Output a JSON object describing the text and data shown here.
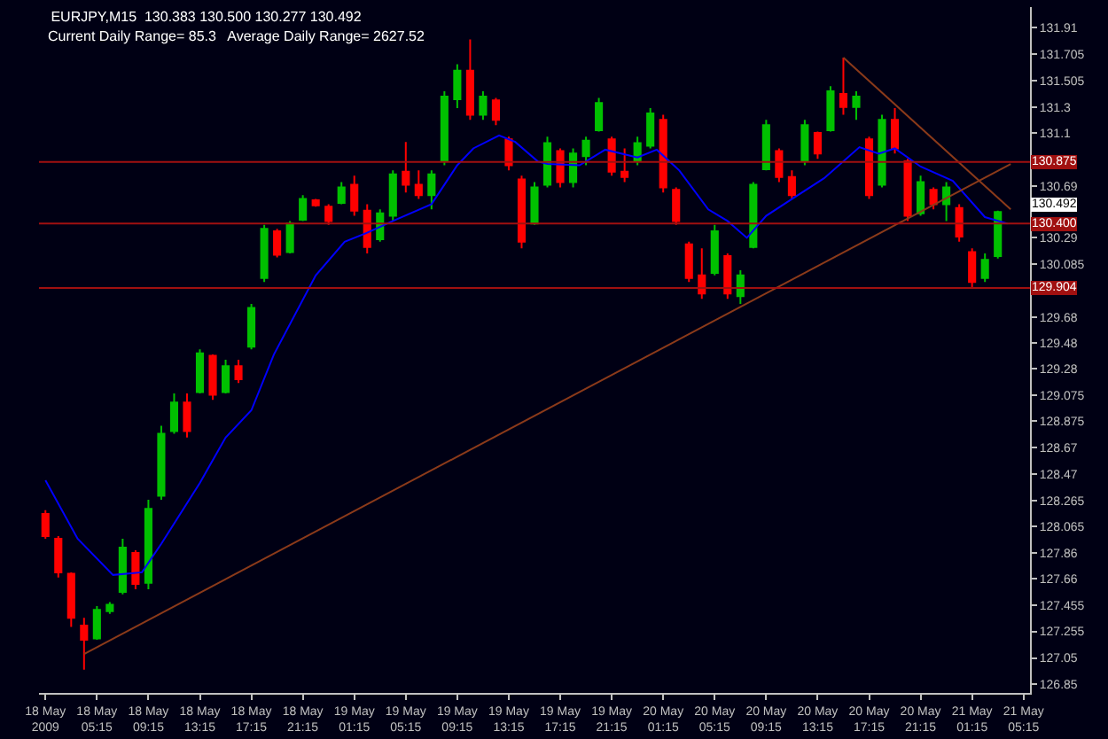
{
  "chart_data": {
    "type": "candlestick",
    "title": "EURJPY,M15  130.383 130.500 130.277 130.492",
    "subtitle": "Current Daily Range= 85.3   Average Daily Range= 2627.52",
    "x": [
      "2009-05-18T01:15",
      "2009-05-18T02:15",
      "2009-05-18T03:15",
      "2009-05-18T04:15",
      "2009-05-18T05:15",
      "2009-05-18T06:15",
      "2009-05-18T07:15",
      "2009-05-18T08:15",
      "2009-05-18T09:15",
      "2009-05-18T10:15",
      "2009-05-18T11:15",
      "2009-05-18T12:15",
      "2009-05-18T13:15",
      "2009-05-18T14:15",
      "2009-05-18T15:15",
      "2009-05-18T16:15",
      "2009-05-18T17:15",
      "2009-05-18T18:15",
      "2009-05-18T19:15",
      "2009-05-18T20:15",
      "2009-05-18T21:15",
      "2009-05-18T22:15",
      "2009-05-18T23:15",
      "2009-05-19T00:15",
      "2009-05-19T01:15",
      "2009-05-19T02:15",
      "2009-05-19T03:15",
      "2009-05-19T04:15",
      "2009-05-19T05:15",
      "2009-05-19T06:15",
      "2009-05-19T07:15",
      "2009-05-19T08:15",
      "2009-05-19T09:15",
      "2009-05-19T10:15",
      "2009-05-19T11:15",
      "2009-05-19T12:15",
      "2009-05-19T13:15",
      "2009-05-19T14:15",
      "2009-05-19T15:15",
      "2009-05-19T16:15",
      "2009-05-19T17:15",
      "2009-05-19T18:15",
      "2009-05-19T19:15",
      "2009-05-19T20:15",
      "2009-05-19T21:15",
      "2009-05-19T22:15",
      "2009-05-19T23:15",
      "2009-05-20T00:15",
      "2009-05-20T01:15",
      "2009-05-20T02:15",
      "2009-05-20T03:15",
      "2009-05-20T04:15",
      "2009-05-20T05:15",
      "2009-05-20T06:15",
      "2009-05-20T07:15",
      "2009-05-20T08:15",
      "2009-05-20T09:15",
      "2009-05-20T10:15",
      "2009-05-20T11:15",
      "2009-05-20T12:15",
      "2009-05-20T13:15",
      "2009-05-20T14:15",
      "2009-05-20T15:15",
      "2009-05-20T16:15",
      "2009-05-20T17:15",
      "2009-05-20T18:15",
      "2009-05-20T19:15",
      "2009-05-20T20:15",
      "2009-05-20T21:15",
      "2009-05-20T22:15",
      "2009-05-20T23:15",
      "2009-05-21T00:15",
      "2009-05-21T01:15",
      "2009-05-21T02:15",
      "2009-05-21T03:15"
    ],
    "series": [
      {
        "type": "candlestick",
        "colors": [
          "#ff0000",
          "#ff0000",
          "#ff0000",
          "#ff0000",
          "#00c000",
          "#00c000",
          "#00c000",
          "#ff0000",
          "#00c000",
          "#00c000",
          "#00c000",
          "#ff0000",
          "#00c000",
          "#ff0000",
          "#00c000",
          "#ff0000",
          "#00c000",
          "#00c000",
          "#ff0000",
          "#00c000",
          "#00c000",
          "#ff0000",
          "#ff0000",
          "#00c000",
          "#ff0000",
          "#ff0000",
          "#00c000",
          "#00c000",
          "#ff0000",
          "#ff0000",
          "#00c000",
          "#00c000",
          "#00c000",
          "#ff0000",
          "#00c000",
          "#ff0000",
          "#ff0000",
          "#ff0000",
          "#00c000",
          "#00c000",
          "#ff0000",
          "#00c000",
          "#00c000",
          "#00c000",
          "#ff0000",
          "#ff0000",
          "#00c000",
          "#00c000",
          "#ff0000",
          "#ff0000",
          "#ff0000",
          "#ff0000",
          "#00c000",
          "#ff0000",
          "#00c000",
          "#00c000",
          "#00c000",
          "#ff0000",
          "#ff0000",
          "#00c000",
          "#ff0000",
          "#00c000",
          "#ff0000",
          "#00c000",
          "#ff0000",
          "#00c000",
          "#ff0000",
          "#ff0000",
          "#00c000",
          "#ff0000",
          "#00c000",
          "#ff0000",
          "#ff0000",
          "#00c000",
          "#00c000"
        ],
        "ohlc": [
          [
            128.16,
            128.19,
            127.97,
            127.99
          ],
          [
            127.97,
            127.99,
            127.67,
            127.71
          ],
          [
            127.7,
            127.71,
            127.29,
            127.36
          ],
          [
            127.3,
            127.36,
            126.96,
            127.19
          ],
          [
            127.2,
            127.45,
            127.19,
            127.42
          ],
          [
            127.41,
            127.48,
            127.39,
            127.46
          ],
          [
            127.56,
            127.97,
            127.54,
            127.9
          ],
          [
            127.86,
            127.88,
            127.58,
            127.62
          ],
          [
            127.63,
            128.27,
            127.58,
            128.2
          ],
          [
            128.3,
            128.84,
            128.27,
            128.78
          ],
          [
            128.8,
            129.09,
            128.78,
            129.02
          ],
          [
            129.02,
            129.09,
            128.75,
            128.8
          ],
          [
            129.1,
            129.43,
            129.09,
            129.4
          ],
          [
            129.38,
            129.39,
            129.04,
            129.08
          ],
          [
            129.1,
            129.35,
            129.09,
            129.3
          ],
          [
            129.3,
            129.35,
            129.17,
            129.2
          ],
          [
            129.45,
            129.78,
            129.43,
            129.75
          ],
          [
            129.98,
            130.39,
            129.95,
            130.36
          ],
          [
            130.34,
            130.36,
            130.14,
            130.16
          ],
          [
            130.18,
            130.42,
            130.17,
            130.4
          ],
          [
            130.43,
            130.62,
            130.42,
            130.59
          ],
          [
            130.58,
            130.59,
            130.53,
            130.54
          ],
          [
            130.53,
            130.55,
            130.39,
            130.42
          ],
          [
            130.56,
            130.72,
            130.55,
            130.68
          ],
          [
            130.7,
            130.77,
            130.46,
            130.5
          ],
          [
            130.5,
            130.55,
            130.17,
            130.22
          ],
          [
            130.28,
            130.51,
            130.26,
            130.48
          ],
          [
            130.46,
            130.81,
            130.42,
            130.78
          ],
          [
            130.8,
            131.03,
            130.64,
            130.7
          ],
          [
            130.7,
            130.81,
            130.59,
            130.62
          ],
          [
            130.62,
            130.81,
            130.51,
            130.78
          ],
          [
            130.88,
            131.42,
            130.85,
            131.38
          ],
          [
            131.36,
            131.63,
            131.29,
            131.58
          ],
          [
            131.58,
            131.82,
            131.2,
            131.24
          ],
          [
            131.24,
            131.42,
            131.2,
            131.38
          ],
          [
            131.35,
            131.37,
            131.16,
            131.2
          ],
          [
            131.05,
            131.07,
            130.81,
            130.85
          ],
          [
            130.74,
            130.77,
            130.21,
            130.26
          ],
          [
            130.4,
            130.72,
            130.39,
            130.68
          ],
          [
            130.7,
            131.07,
            130.68,
            131.02
          ],
          [
            130.96,
            130.98,
            130.68,
            130.72
          ],
          [
            130.72,
            130.98,
            130.68,
            130.94
          ],
          [
            130.92,
            131.07,
            130.85,
            131.04
          ],
          [
            131.12,
            131.37,
            131.11,
            131.33
          ],
          [
            131.05,
            131.07,
            130.77,
            130.8
          ],
          [
            130.8,
            130.98,
            130.72,
            130.76
          ],
          [
            130.88,
            131.07,
            130.85,
            131.02
          ],
          [
            131.0,
            131.29,
            130.98,
            131.25
          ],
          [
            131.2,
            131.24,
            130.64,
            130.68
          ],
          [
            130.66,
            130.68,
            130.39,
            130.42
          ],
          [
            130.24,
            130.26,
            129.95,
            129.98
          ],
          [
            130.0,
            130.21,
            129.82,
            129.86
          ],
          [
            130.02,
            130.39,
            130.0,
            130.34
          ],
          [
            130.15,
            130.17,
            129.82,
            129.86
          ],
          [
            129.84,
            130.04,
            129.78,
            130.0
          ],
          [
            130.22,
            130.72,
            130.21,
            130.7
          ],
          [
            130.82,
            131.2,
            130.81,
            131.16
          ],
          [
            130.96,
            130.98,
            130.72,
            130.76
          ],
          [
            130.76,
            130.81,
            130.59,
            130.62
          ],
          [
            130.88,
            131.2,
            130.85,
            131.16
          ],
          [
            131.1,
            131.11,
            130.9,
            130.94
          ],
          [
            131.12,
            131.46,
            131.11,
            131.42
          ],
          [
            131.4,
            131.68,
            131.24,
            131.3
          ],
          [
            131.3,
            131.42,
            131.2,
            131.38
          ],
          [
            131.05,
            131.07,
            130.59,
            130.62
          ],
          [
            130.7,
            131.24,
            130.68,
            131.2
          ],
          [
            131.2,
            131.29,
            130.94,
            130.98
          ],
          [
            130.88,
            130.9,
            130.42,
            130.46
          ],
          [
            130.48,
            130.77,
            130.46,
            130.72
          ],
          [
            130.66,
            130.68,
            130.51,
            130.55
          ],
          [
            130.55,
            130.72,
            130.42,
            130.68
          ],
          [
            130.52,
            130.55,
            130.26,
            130.3
          ],
          [
            130.18,
            130.21,
            129.91,
            129.95
          ],
          [
            129.98,
            130.17,
            129.95,
            130.12
          ],
          [
            130.15,
            130.5,
            130.13,
            130.49
          ]
        ]
      },
      {
        "type": "line",
        "color": "#0000ff",
        "x": [
          "2009-05-18T01:15",
          "2009-05-18T03:45",
          "2009-05-18T06:30",
          "2009-05-18T08:45",
          "2009-05-18T10:15",
          "2009-05-18T13:15",
          "2009-05-18T15:15",
          "2009-05-18T17:15",
          "2009-05-18T19:00",
          "2009-05-18T22:15",
          "2009-05-19T00:30",
          "2009-05-19T02:15",
          "2009-05-19T04:15",
          "2009-05-19T07:15",
          "2009-05-19T09:15",
          "2009-05-19T10:30",
          "2009-05-19T12:30",
          "2009-05-19T13:45",
          "2009-05-19T15:30",
          "2009-05-19T16:15",
          "2009-05-19T18:45",
          "2009-05-19T20:45",
          "2009-05-19T23:15",
          "2009-05-20T00:45",
          "2009-05-20T02:30",
          "2009-05-20T04:45",
          "2009-05-20T06:15",
          "2009-05-20T07:45",
          "2009-05-20T09:15",
          "2009-05-20T11:15",
          "2009-05-20T13:45",
          "2009-05-20T16:30",
          "2009-05-20T18:00",
          "2009-05-20T19:15",
          "2009-05-20T21:15",
          "2009-05-20T23:45",
          "2009-05-21T02:15",
          "2009-05-21T04:00"
        ],
        "values": [
          128.42,
          127.97,
          127.69,
          127.71,
          127.93,
          128.4,
          128.75,
          128.96,
          129.39,
          130.0,
          130.26,
          130.33,
          130.42,
          130.55,
          130.85,
          130.98,
          131.08,
          131.03,
          130.88,
          130.86,
          130.85,
          130.97,
          130.91,
          130.97,
          130.81,
          130.51,
          130.42,
          130.29,
          130.46,
          130.59,
          130.75,
          130.99,
          130.94,
          130.98,
          130.84,
          130.73,
          130.45,
          130.4
        ]
      },
      {
        "type": "line",
        "color": "#8b3a1a",
        "x": [
          "2009-05-18T04:15",
          "2009-05-21T04:15"
        ],
        "values": [
          127.08,
          130.86
        ]
      },
      {
        "type": "line",
        "color": "#8b3a1a",
        "x": [
          "2009-05-20T15:15",
          "2009-05-21T04:15"
        ],
        "values": [
          131.68,
          130.51
        ]
      }
    ],
    "ref_lines": [
      {
        "axis": "y",
        "value": 130.875,
        "label": "130.875",
        "color": "#a01010"
      },
      {
        "axis": "y",
        "value": 130.4,
        "label": "130.400",
        "color": "#a01010"
      },
      {
        "axis": "y",
        "value": 129.904,
        "label": "129.904",
        "color": "#a01010"
      }
    ],
    "annotations": [
      "130.492"
    ],
    "xlim": [
      "2009-05-18T00:45",
      "2009-05-21T05:45"
    ],
    "xticks": [
      {
        "value": "2009-05-18T01:15",
        "label": "18 May 2009"
      },
      {
        "value": "2009-05-18T05:15",
        "label": "18 May 05:15"
      },
      {
        "value": "2009-05-18T09:15",
        "label": "18 May 09:15"
      },
      {
        "value": "2009-05-18T13:15",
        "label": "18 May 13:15"
      },
      {
        "value": "2009-05-18T17:15",
        "label": "18 May 17:15"
      },
      {
        "value": "2009-05-18T21:15",
        "label": "18 May 21:15"
      },
      {
        "value": "2009-05-19T01:15",
        "label": "19 May 01:15"
      },
      {
        "value": "2009-05-19T05:15",
        "label": "19 May 05:15"
      },
      {
        "value": "2009-05-19T09:15",
        "label": "19 May 09:15"
      },
      {
        "value": "2009-05-19T13:15",
        "label": "19 May 13:15"
      },
      {
        "value": "2009-05-19T17:15",
        "label": "19 May 17:15"
      },
      {
        "value": "2009-05-19T21:15",
        "label": "19 May 21:15"
      },
      {
        "value": "2009-05-20T01:15",
        "label": "20 May 01:15"
      },
      {
        "value": "2009-05-20T05:15",
        "label": "20 May 05:15"
      },
      {
        "value": "2009-05-20T09:15",
        "label": "20 May 09:15"
      },
      {
        "value": "2009-05-20T13:15",
        "label": "20 May 13:15"
      },
      {
        "value": "2009-05-20T17:15",
        "label": "20 May 17:15"
      },
      {
        "value": "2009-05-20T21:15",
        "label": "20 May 21:15"
      },
      {
        "value": "2009-05-21T01:15",
        "label": "21 May 01:15"
      },
      {
        "value": "2009-05-21T05:15",
        "label": "21 May 05:15"
      }
    ],
    "ylim": [
      126.78,
      132.07
    ],
    "yticks": [
      131.91,
      131.705,
      131.505,
      131.3,
      131.1,
      130.69,
      130.29,
      130.085,
      129.68,
      129.48,
      129.28,
      129.075,
      128.875,
      128.67,
      128.47,
      128.265,
      128.065,
      127.86,
      127.66,
      127.455,
      127.255,
      127.05,
      126.85
    ],
    "grid": false
  }
}
